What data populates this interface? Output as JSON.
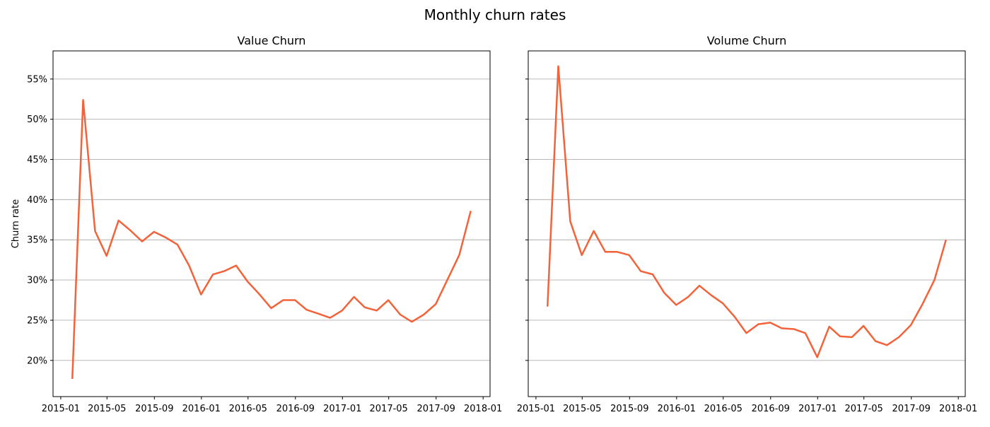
{
  "title": "Monthly churn rates",
  "colors": {
    "line": "#f4623a",
    "grid": "#b0b0b0"
  },
  "chart_data": [
    {
      "type": "line",
      "title": "Value Churn",
      "xlabel": "",
      "ylabel": "Churn rate",
      "ylim": [
        0.155,
        0.585
      ],
      "xlim": [
        "2014-12-12",
        "2018-01-19"
      ],
      "grid": {
        "x": false,
        "y": true
      },
      "y_ticks": [
        0.2,
        0.25,
        0.3,
        0.35,
        0.4,
        0.45,
        0.5,
        0.55
      ],
      "y_tick_labels": [
        "20%",
        "25%",
        "30%",
        "35%",
        "40%",
        "45%",
        "50%",
        "55%"
      ],
      "x_ticks": [
        "2015-01-01",
        "2015-05-01",
        "2015-09-01",
        "2016-01-01",
        "2016-05-01",
        "2016-09-01",
        "2017-01-01",
        "2017-05-01",
        "2017-09-01",
        "2018-01-01"
      ],
      "x_tick_labels": [
        "2015-01",
        "2015-05",
        "2015-09",
        "2016-01",
        "2016-05",
        "2016-09",
        "2017-01",
        "2017-05",
        "2017-09",
        "2018-01"
      ],
      "series": [
        {
          "x": [
            "2015-01-31",
            "2015-02-28",
            "2015-03-31",
            "2015-04-30",
            "2015-05-31",
            "2015-06-30",
            "2015-07-31",
            "2015-08-31",
            "2015-09-30",
            "2015-10-31",
            "2015-11-30",
            "2015-12-31",
            "2016-01-31",
            "2016-02-29",
            "2016-03-31",
            "2016-04-30",
            "2016-05-31",
            "2016-06-30",
            "2016-07-31",
            "2016-08-31",
            "2016-09-30",
            "2016-10-31",
            "2016-11-30",
            "2016-12-31",
            "2017-01-31",
            "2017-02-28",
            "2017-03-31",
            "2017-04-30",
            "2017-05-31",
            "2017-06-30",
            "2017-07-31",
            "2017-08-31",
            "2017-09-30",
            "2017-10-31",
            "2017-11-30"
          ],
          "values": [
            0.177,
            0.524,
            0.361,
            0.33,
            0.374,
            0.362,
            0.348,
            0.36,
            0.353,
            0.344,
            0.318,
            0.282,
            0.307,
            0.311,
            0.318,
            0.298,
            0.282,
            0.265,
            0.275,
            0.275,
            0.263,
            0.258,
            0.253,
            0.262,
            0.279,
            0.266,
            0.262,
            0.275,
            0.257,
            0.248,
            0.257,
            0.27,
            0.3,
            0.331,
            0.386
          ]
        }
      ]
    },
    {
      "type": "line",
      "title": "Volume Churn",
      "xlabel": "",
      "ylabel": "",
      "ylim": [
        0.155,
        0.585
      ],
      "xlim": [
        "2014-12-12",
        "2018-01-19"
      ],
      "grid": {
        "x": false,
        "y": true
      },
      "y_ticks": [
        0.2,
        0.25,
        0.3,
        0.35,
        0.4,
        0.45,
        0.5,
        0.55
      ],
      "y_tick_labels": [],
      "x_ticks": [
        "2015-01-01",
        "2015-05-01",
        "2015-09-01",
        "2016-01-01",
        "2016-05-01",
        "2016-09-01",
        "2017-01-01",
        "2017-05-01",
        "2017-09-01",
        "2018-01-01"
      ],
      "x_tick_labels": [
        "2015-01",
        "2015-05",
        "2015-09",
        "2016-01",
        "2016-05",
        "2016-09",
        "2017-01",
        "2017-05",
        "2017-09",
        "2018-01"
      ],
      "series": [
        {
          "x": [
            "2015-01-31",
            "2015-02-28",
            "2015-03-31",
            "2015-04-30",
            "2015-05-31",
            "2015-06-30",
            "2015-07-31",
            "2015-08-31",
            "2015-09-30",
            "2015-10-31",
            "2015-11-30",
            "2015-12-31",
            "2016-01-31",
            "2016-02-29",
            "2016-03-31",
            "2016-04-30",
            "2016-05-31",
            "2016-06-30",
            "2016-07-31",
            "2016-08-31",
            "2016-09-30",
            "2016-10-31",
            "2016-11-30",
            "2016-12-31",
            "2017-01-31",
            "2017-02-28",
            "2017-03-31",
            "2017-04-30",
            "2017-05-31",
            "2017-06-30",
            "2017-07-31",
            "2017-08-31",
            "2017-09-30",
            "2017-10-31",
            "2017-11-30"
          ],
          "values": [
            0.267,
            0.566,
            0.373,
            0.331,
            0.361,
            0.335,
            0.335,
            0.331,
            0.311,
            0.307,
            0.284,
            0.269,
            0.279,
            0.293,
            0.281,
            0.271,
            0.254,
            0.234,
            0.245,
            0.247,
            0.24,
            0.239,
            0.234,
            0.204,
            0.242,
            0.23,
            0.229,
            0.243,
            0.224,
            0.219,
            0.229,
            0.244,
            0.27,
            0.3,
            0.35
          ]
        }
      ]
    }
  ]
}
